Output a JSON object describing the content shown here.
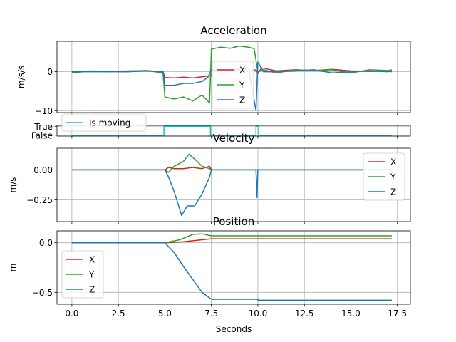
{
  "figure": {
    "xlabel": "Seconds",
    "xticks": [
      "0.0",
      "2.5",
      "5.0",
      "7.5",
      "10.0",
      "12.5",
      "15.0",
      "17.5"
    ],
    "xlim": [
      -0.8,
      18.2
    ]
  },
  "colors": {
    "X": "#d62728",
    "Y": "#2ca02c",
    "Z": "#1f77b4",
    "moving": "#17becf"
  },
  "chart_data": [
    {
      "id": "acceleration",
      "type": "line",
      "title": "Acceleration",
      "ylabel": "m/s/s",
      "ylim": [
        -10.5,
        7.8
      ],
      "yticks": [
        {
          "value": 0,
          "label": "0"
        },
        {
          "value": -10,
          "label": "−10"
        }
      ],
      "grid": true,
      "legend": "center",
      "series": [
        {
          "name": "X",
          "points": [
            [
              0,
              0
            ],
            [
              1,
              0.1
            ],
            [
              2,
              0.1
            ],
            [
              3,
              0
            ],
            [
              4,
              0.3
            ],
            [
              4.9,
              0
            ],
            [
              5.0,
              -1.5
            ],
            [
              5.5,
              -1.6
            ],
            [
              6.0,
              -1.4
            ],
            [
              6.5,
              -1.6
            ],
            [
              7.0,
              -1.3
            ],
            [
              7.5,
              -1.0
            ],
            [
              7.6,
              0.2
            ],
            [
              8.5,
              0.3
            ],
            [
              9.5,
              0.2
            ],
            [
              9.9,
              0.5
            ],
            [
              10.0,
              -0.5
            ],
            [
              10.2,
              1
            ],
            [
              11,
              0.2
            ],
            [
              12,
              0.5
            ],
            [
              13,
              0.3
            ],
            [
              14,
              0.6
            ],
            [
              15,
              0.2
            ],
            [
              16,
              0.1
            ],
            [
              17,
              0.2
            ],
            [
              17.2,
              0
            ]
          ]
        },
        {
          "name": "Y",
          "points": [
            [
              0,
              -0.3
            ],
            [
              1,
              0.2
            ],
            [
              2,
              0
            ],
            [
              3,
              0.2
            ],
            [
              4,
              0.3
            ],
            [
              4.9,
              -0.3
            ],
            [
              5.0,
              -6.5
            ],
            [
              5.5,
              -7.0
            ],
            [
              6.0,
              -6.5
            ],
            [
              6.5,
              -7.5
            ],
            [
              7.0,
              -6.0
            ],
            [
              7.4,
              -8.0
            ],
            [
              7.5,
              5.8
            ],
            [
              8.0,
              6.3
            ],
            [
              8.5,
              6.0
            ],
            [
              9.0,
              6.6
            ],
            [
              9.5,
              6.3
            ],
            [
              9.8,
              5.9
            ],
            [
              10.0,
              0
            ],
            [
              10.3,
              0.5
            ],
            [
              11,
              -0.3
            ],
            [
              12,
              0.5
            ],
            [
              13,
              0.3
            ],
            [
              14,
              0.5
            ],
            [
              15,
              -0.3
            ],
            [
              16,
              0.5
            ],
            [
              17,
              0.3
            ],
            [
              17.2,
              0.5
            ]
          ]
        },
        {
          "name": "Z",
          "points": [
            [
              0,
              0
            ],
            [
              1,
              0
            ],
            [
              2,
              0
            ],
            [
              3,
              0
            ],
            [
              4,
              0.2
            ],
            [
              4.9,
              0
            ],
            [
              5.0,
              -3.5
            ],
            [
              5.5,
              -3.5
            ],
            [
              6.0,
              -3.0
            ],
            [
              6.5,
              -3.0
            ],
            [
              7.0,
              -2.5
            ],
            [
              7.3,
              -1.5
            ],
            [
              7.5,
              0.5
            ],
            [
              8.5,
              0.5
            ],
            [
              9.5,
              0.8
            ],
            [
              9.9,
              -10
            ],
            [
              10.0,
              2.5
            ],
            [
              10.3,
              0
            ],
            [
              11,
              0
            ],
            [
              12,
              0.2
            ],
            [
              13,
              0.5
            ],
            [
              14,
              -0.3
            ],
            [
              15,
              0
            ],
            [
              16,
              0.2
            ],
            [
              17,
              0
            ],
            [
              17.2,
              0.2
            ]
          ]
        }
      ]
    },
    {
      "id": "is_moving",
      "type": "line",
      "title": "",
      "ylabel": "",
      "ylim": [
        -0.1,
        1.1
      ],
      "yticks": [
        {
          "value": 1,
          "label": "True"
        },
        {
          "value": 0,
          "label": "False"
        }
      ],
      "grid": true,
      "legend": "top-left",
      "series": [
        {
          "name": "Is moving",
          "points": [
            [
              0,
              0
            ],
            [
              4.95,
              0
            ],
            [
              4.95,
              1
            ],
            [
              7.45,
              1
            ],
            [
              7.45,
              0
            ],
            [
              9.9,
              0
            ],
            [
              9.9,
              1
            ],
            [
              10.05,
              1
            ],
            [
              10.05,
              0
            ],
            [
              17.2,
              0
            ]
          ]
        }
      ]
    },
    {
      "id": "velocity",
      "type": "line",
      "title": "Velocity",
      "ylabel": "m/s",
      "ylim": [
        -0.43,
        0.18
      ],
      "yticks": [
        {
          "value": 0,
          "label": "0.00"
        },
        {
          "value": -0.25,
          "label": "−0.25"
        }
      ],
      "grid": true,
      "legend": "right",
      "series": [
        {
          "name": "X",
          "points": [
            [
              0,
              0
            ],
            [
              5.0,
              0
            ],
            [
              5.2,
              0.02
            ],
            [
              5.5,
              0.01
            ],
            [
              6.0,
              0.01
            ],
            [
              6.5,
              0.02
            ],
            [
              7.0,
              0.01
            ],
            [
              7.4,
              0.03
            ],
            [
              7.5,
              0
            ],
            [
              17.2,
              0
            ]
          ]
        },
        {
          "name": "Y",
          "points": [
            [
              0,
              0
            ],
            [
              5.0,
              0
            ],
            [
              5.2,
              -0.02
            ],
            [
              5.5,
              0.03
            ],
            [
              6.0,
              0.07
            ],
            [
              6.3,
              0.13
            ],
            [
              6.6,
              0.09
            ],
            [
              7.0,
              0.03
            ],
            [
              7.4,
              0.01
            ],
            [
              7.5,
              0
            ],
            [
              17.2,
              0
            ]
          ]
        },
        {
          "name": "Z",
          "points": [
            [
              0,
              0
            ],
            [
              5.0,
              0
            ],
            [
              5.2,
              -0.06
            ],
            [
              5.5,
              -0.18
            ],
            [
              5.9,
              -0.38
            ],
            [
              6.2,
              -0.3
            ],
            [
              6.6,
              -0.3
            ],
            [
              7.0,
              -0.2
            ],
            [
              7.4,
              -0.06
            ],
            [
              7.5,
              0
            ],
            [
              9.9,
              0
            ],
            [
              9.95,
              -0.23
            ],
            [
              10.0,
              0
            ],
            [
              17.2,
              0
            ]
          ]
        }
      ]
    },
    {
      "id": "position",
      "type": "line",
      "title": "Position",
      "ylabel": "m",
      "ylim": [
        -0.62,
        0.12
      ],
      "yticks": [
        {
          "value": 0,
          "label": "0.0"
        },
        {
          "value": -0.5,
          "label": "−0.5"
        }
      ],
      "grid": true,
      "legend": "left",
      "series": [
        {
          "name": "X",
          "points": [
            [
              0,
              0
            ],
            [
              5.0,
              0
            ],
            [
              6.0,
              0.01
            ],
            [
              7.0,
              0.03
            ],
            [
              7.5,
              0.04
            ],
            [
              17.2,
              0.04
            ]
          ]
        },
        {
          "name": "Y",
          "points": [
            [
              0,
              0
            ],
            [
              5.0,
              0
            ],
            [
              5.8,
              0.03
            ],
            [
              6.5,
              0.085
            ],
            [
              7.0,
              0.09
            ],
            [
              7.5,
              0.07
            ],
            [
              17.2,
              0.07
            ]
          ]
        },
        {
          "name": "Z",
          "points": [
            [
              0,
              0
            ],
            [
              5.0,
              0
            ],
            [
              5.5,
              -0.1
            ],
            [
              6.0,
              -0.24
            ],
            [
              6.5,
              -0.37
            ],
            [
              7.0,
              -0.5
            ],
            [
              7.5,
              -0.57
            ],
            [
              10.0,
              -0.57
            ],
            [
              10.0,
              -0.58
            ],
            [
              17.2,
              -0.58
            ]
          ]
        }
      ]
    }
  ]
}
